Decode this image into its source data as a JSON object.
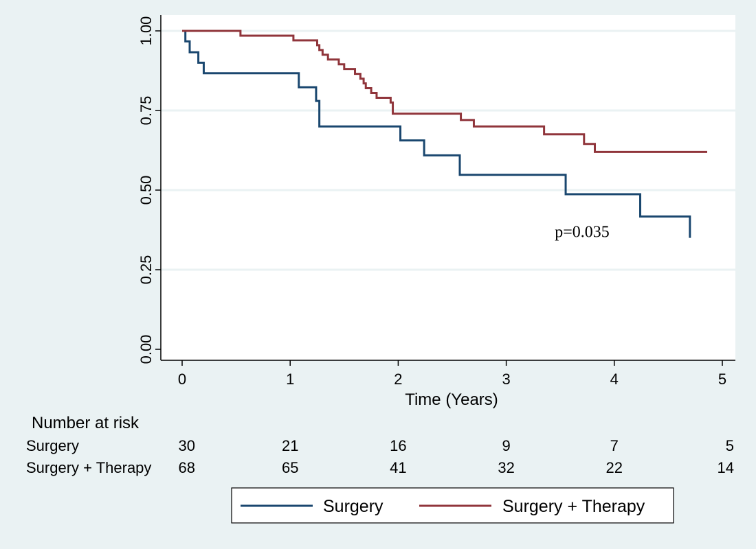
{
  "chart_data": {
    "type": "line",
    "step": true,
    "xlabel": "Time (Years)",
    "ylabel": "",
    "xlim": [
      0,
      5
    ],
    "ylim": [
      0,
      1
    ],
    "x_ticks": [
      0,
      1,
      2,
      3,
      4,
      5
    ],
    "y_ticks": [
      0,
      0.25,
      0.5,
      0.75,
      1
    ],
    "x_tick_labels": [
      "0",
      "1",
      "2",
      "3",
      "4",
      "5"
    ],
    "y_tick_labels": [
      "0.00",
      "0.25",
      "0.50",
      "0.75",
      "1.00"
    ],
    "grid": "horizontal",
    "annotation": {
      "text": "p=0.035",
      "x": 3.5,
      "y": 0.37
    },
    "series": [
      {
        "name": "Surgery",
        "color": "#1a476f",
        "points": [
          [
            0,
            1.0
          ],
          [
            0.03,
            0.967
          ],
          [
            0.07,
            0.933
          ],
          [
            0.15,
            0.9
          ],
          [
            0.2,
            0.867
          ],
          [
            1.08,
            0.823
          ],
          [
            1.24,
            0.78
          ],
          [
            1.27,
            0.7
          ],
          [
            2.02,
            0.656
          ],
          [
            2.24,
            0.609
          ],
          [
            2.57,
            0.548
          ],
          [
            3.55,
            0.487
          ],
          [
            4.24,
            0.417
          ],
          [
            4.7,
            0.35
          ]
        ],
        "end_x": 4.7
      },
      {
        "name": "Surgery + Therapy",
        "color": "#90353b",
        "points": [
          [
            0,
            1.0
          ],
          [
            0.54,
            0.985
          ],
          [
            1.03,
            0.97
          ],
          [
            1.25,
            0.955
          ],
          [
            1.27,
            0.94
          ],
          [
            1.3,
            0.925
          ],
          [
            1.35,
            0.91
          ],
          [
            1.45,
            0.895
          ],
          [
            1.5,
            0.88
          ],
          [
            1.6,
            0.865
          ],
          [
            1.65,
            0.85
          ],
          [
            1.68,
            0.835
          ],
          [
            1.7,
            0.82
          ],
          [
            1.75,
            0.805
          ],
          [
            1.8,
            0.79
          ],
          [
            1.93,
            0.775
          ],
          [
            1.95,
            0.74
          ],
          [
            2.58,
            0.72
          ],
          [
            2.7,
            0.7
          ],
          [
            3.35,
            0.675
          ],
          [
            3.72,
            0.645
          ],
          [
            3.82,
            0.62
          ]
        ],
        "end_x": 4.86
      }
    ]
  },
  "risk_table": {
    "title": "Number at risk",
    "rows": [
      {
        "label": "Surgery",
        "values": [
          "30",
          "21",
          "16",
          "9",
          "7",
          "5"
        ]
      },
      {
        "label": "Surgery + Therapy",
        "values": [
          "68",
          "65",
          "41",
          "32",
          "22",
          "14"
        ]
      }
    ]
  },
  "legend": {
    "placement": "bottom",
    "items": [
      "Surgery",
      "Surgery + Therapy"
    ]
  }
}
